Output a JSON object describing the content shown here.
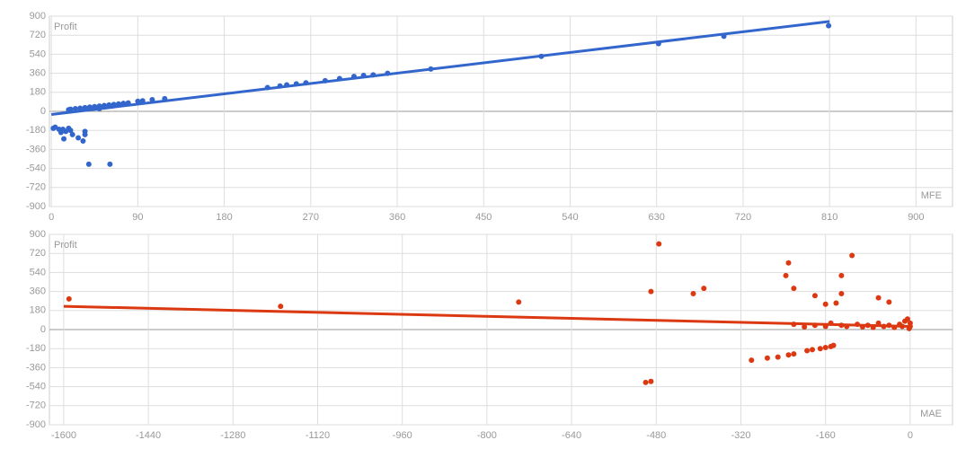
{
  "chart_data": [
    {
      "type": "scatter",
      "y_label": "Profit",
      "x_label": "MFE",
      "color": "#3366cc",
      "x": [
        809,
        700,
        632,
        510,
        395,
        350,
        335,
        325,
        315,
        300,
        285,
        265,
        255,
        245,
        238,
        225,
        118,
        105,
        95,
        90,
        80,
        75,
        70,
        65,
        60,
        55,
        50,
        45,
        40,
        35,
        30,
        25,
        20,
        18,
        50,
        4,
        2,
        8,
        10,
        12,
        15,
        18,
        20,
        22,
        13,
        28,
        33,
        35,
        35,
        39,
        61
      ],
      "values": [
        810,
        710,
        640,
        520,
        400,
        360,
        345,
        340,
        330,
        310,
        290,
        270,
        260,
        250,
        240,
        225,
        120,
        110,
        100,
        95,
        80,
        75,
        70,
        65,
        60,
        55,
        50,
        45,
        40,
        35,
        30,
        25,
        20,
        15,
        25,
        -150,
        -160,
        -170,
        -200,
        -170,
        -190,
        -160,
        -180,
        -220,
        -260,
        -250,
        -280,
        -220,
        -190,
        -500,
        -500
      ],
      "trendline": {
        "x": [
          0,
          810
        ],
        "y": [
          -30,
          850
        ]
      },
      "xlim": [
        -2,
        938
      ],
      "ylim": [
        -900,
        900
      ],
      "xticks": [
        0,
        90,
        180,
        270,
        360,
        450,
        540,
        630,
        720,
        810,
        900
      ],
      "yticks": [
        -900,
        -720,
        -540,
        -360,
        -180,
        0,
        180,
        360,
        540,
        720,
        900
      ],
      "grid": true
    },
    {
      "type": "scatter",
      "y_label": "Profit",
      "x_label": "MAE",
      "color": "#dc3912",
      "x": [
        -1590,
        -1190,
        -740,
        -490,
        -475,
        -500,
        -490,
        -390,
        -410,
        -300,
        -270,
        -250,
        -230,
        -220,
        -195,
        -185,
        -170,
        -160,
        -150,
        -145,
        -230,
        -235,
        -220,
        -180,
        -160,
        -140,
        -130,
        -130,
        -110,
        -60,
        -40,
        -220,
        -180,
        -150,
        -130,
        -100,
        -80,
        -60,
        -40,
        -20,
        -10,
        -5,
        0,
        0,
        -15,
        -30,
        -50,
        -70,
        -90,
        -120,
        -160,
        -200,
        -2
      ],
      "values": [
        290,
        220,
        260,
        360,
        810,
        -500,
        -490,
        390,
        340,
        -290,
        -270,
        -260,
        -240,
        -230,
        -200,
        -190,
        -180,
        -170,
        -160,
        -150,
        630,
        510,
        390,
        320,
        240,
        250,
        510,
        340,
        700,
        300,
        260,
        50,
        40,
        60,
        40,
        50,
        40,
        60,
        40,
        50,
        80,
        100,
        60,
        30,
        30,
        20,
        30,
        20,
        25,
        30,
        30,
        25,
        10
      ],
      "trendline": {
        "x": [
          -1600,
          0
        ],
        "y": [
          220,
          30
        ]
      },
      "xlim": [
        -1627,
        80
      ],
      "ylim": [
        -900,
        900
      ],
      "xticks": [
        -1600,
        -1440,
        -1280,
        -1120,
        -960,
        -800,
        -640,
        -480,
        -320,
        -160,
        0
      ],
      "yticks": [
        -900,
        -720,
        -540,
        -360,
        -180,
        0,
        180,
        360,
        540,
        720,
        900
      ],
      "grid": true
    }
  ]
}
